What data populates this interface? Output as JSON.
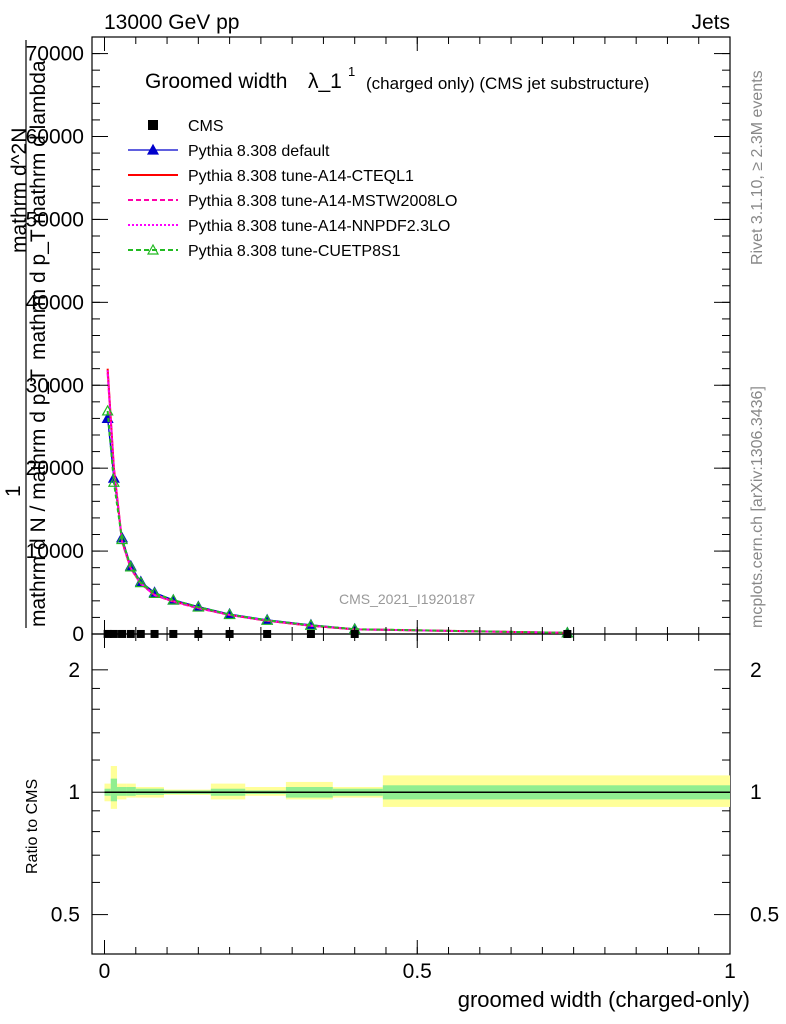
{
  "header": {
    "left": "13000 GeV pp",
    "right": "Jets",
    "right_side_1": "Rivet 3.1.10, ≥ 2.3M events",
    "right_side_2": "mcplots.cern.ch [arXiv:1306.3436]"
  },
  "main_title": "Groomed width",
  "main_title_lambda": "λ_1",
  "main_title_sup": "1",
  "main_title_suffix": "(charged only) (CMS jet substructure)",
  "watermark": "CMS_2021_I1920187",
  "y_axis_main": {
    "label_one": "1",
    "label_denominator": "mathrm d N / mathrm d p_T",
    "label_numerator": "mathrm d^2N",
    "label_numerator_2": "mathrm d p_T mathrm d lambda",
    "sub_T": "T"
  },
  "y_axis_ratio_label": "Ratio to CMS",
  "x_axis_label": "groomed width (charged-only)",
  "legend": [
    {
      "label": "CMS",
      "color": "#000000",
      "style": "square"
    },
    {
      "label": "Pythia 8.308 default",
      "color": "#0000cc",
      "style": "line-triangle"
    },
    {
      "label": "Pythia 8.308 tune-A14-CTEQL1",
      "color": "#ff0000",
      "style": "solid"
    },
    {
      "label": "Pythia 8.308 tune-A14-MSTW2008LO",
      "color": "#ff00aa",
      "style": "dashed"
    },
    {
      "label": "Pythia 8.308 tune-A14-NNPDF2.3LO",
      "color": "#ff00ff",
      "style": "dotted"
    },
    {
      "label": "Pythia 8.308 tune-CUETP8S1",
      "color": "#22bb22",
      "style": "dashed-open-triangle"
    }
  ],
  "chart_data": [
    {
      "type": "line",
      "panel": "main",
      "xlim": [
        -0.02,
        1.0
      ],
      "ylim": [
        0,
        72000
      ],
      "x_ticks": [
        0,
        0.5,
        1
      ],
      "x_tick_labels": [
        "0",
        "0.5",
        "1"
      ],
      "y_ticks": [
        0,
        10000,
        20000,
        30000,
        40000,
        50000,
        60000,
        70000
      ],
      "y_tick_labels": [
        "0",
        "10000",
        "20000",
        "30000",
        "40000",
        "50000",
        "60000",
        "70000"
      ],
      "x": [
        0.005,
        0.015,
        0.028,
        0.042,
        0.058,
        0.08,
        0.11,
        0.15,
        0.2,
        0.26,
        0.33,
        0.4,
        0.74
      ],
      "series": [
        {
          "name": "CMS",
          "values": [
            6,
            5,
            4,
            4,
            3,
            3,
            3,
            2,
            2,
            2,
            1,
            1,
            0.5
          ]
        },
        {
          "name": "Pythia 8.308 default",
          "values": [
            26000,
            18800,
            11600,
            8200,
            6300,
            5000,
            4100,
            3300,
            2400,
            1700,
            1100,
            600,
            150
          ]
        },
        {
          "name": "Pythia 8.308 tune-A14-CTEQL1",
          "values": [
            32000,
            20000,
            11200,
            7900,
            6100,
            4700,
            3950,
            3150,
            2300,
            1600,
            1000,
            560,
            140
          ]
        },
        {
          "name": "Pythia 8.308 tune-A14-MSTW2008LO",
          "values": [
            31500,
            19800,
            11100,
            7900,
            6050,
            4700,
            3900,
            3100,
            2300,
            1600,
            1000,
            560,
            140
          ]
        },
        {
          "name": "Pythia 8.308 tune-A14-NNPDF2.3LO",
          "values": [
            31800,
            20000,
            11200,
            7950,
            6100,
            4700,
            3950,
            3150,
            2300,
            1600,
            1000,
            560,
            140
          ]
        },
        {
          "name": "Pythia 8.308 tune-CUETP8S1",
          "values": [
            26900,
            18300,
            11400,
            8100,
            6200,
            4900,
            4100,
            3250,
            2350,
            1650,
            1050,
            580,
            140
          ]
        }
      ]
    },
    {
      "type": "area",
      "panel": "ratio",
      "xlim": [
        -0.02,
        1.0
      ],
      "ylim": [
        0.4,
        2.45
      ],
      "log_y": true,
      "y_ticks": [
        0.5,
        1,
        2
      ],
      "y_tick_labels": [
        "0.5",
        "1",
        "2"
      ],
      "x_ticks": [
        0,
        0.5,
        1
      ],
      "x_tick_labels": [
        "0",
        "0.5",
        "1"
      ],
      "bins": [
        {
          "x0": 0.0,
          "x1": 0.01,
          "inner": [
            0.98,
            1.02
          ],
          "outer": [
            0.95,
            1.05
          ]
        },
        {
          "x0": 0.01,
          "x1": 0.02,
          "inner": [
            0.95,
            1.08
          ],
          "outer": [
            0.91,
            1.16
          ]
        },
        {
          "x0": 0.02,
          "x1": 0.035,
          "inner": [
            0.98,
            1.03
          ],
          "outer": [
            0.96,
            1.05
          ]
        },
        {
          "x0": 0.035,
          "x1": 0.05,
          "inner": [
            0.98,
            1.03
          ],
          "outer": [
            0.97,
            1.05
          ]
        },
        {
          "x0": 0.05,
          "x1": 0.095,
          "inner": [
            0.985,
            1.02
          ],
          "outer": [
            0.97,
            1.03
          ]
        },
        {
          "x0": 0.095,
          "x1": 0.17,
          "inner": [
            0.99,
            1.01
          ],
          "outer": [
            0.985,
            1.015
          ]
        },
        {
          "x0": 0.17,
          "x1": 0.225,
          "inner": [
            0.98,
            1.02
          ],
          "outer": [
            0.96,
            1.05
          ]
        },
        {
          "x0": 0.225,
          "x1": 0.29,
          "inner": [
            0.99,
            1.01
          ],
          "outer": [
            0.98,
            1.03
          ]
        },
        {
          "x0": 0.29,
          "x1": 0.365,
          "inner": [
            0.97,
            1.03
          ],
          "outer": [
            0.96,
            1.06
          ]
        },
        {
          "x0": 0.365,
          "x1": 0.445,
          "inner": [
            0.98,
            1.02
          ],
          "outer": [
            0.97,
            1.03
          ]
        },
        {
          "x0": 0.445,
          "x1": 1.0,
          "inner": [
            0.96,
            1.04
          ],
          "outer": [
            0.92,
            1.1
          ]
        }
      ],
      "reference": 1.0,
      "inner_color": "#90ee90",
      "outer_color": "#ffff99"
    }
  ]
}
